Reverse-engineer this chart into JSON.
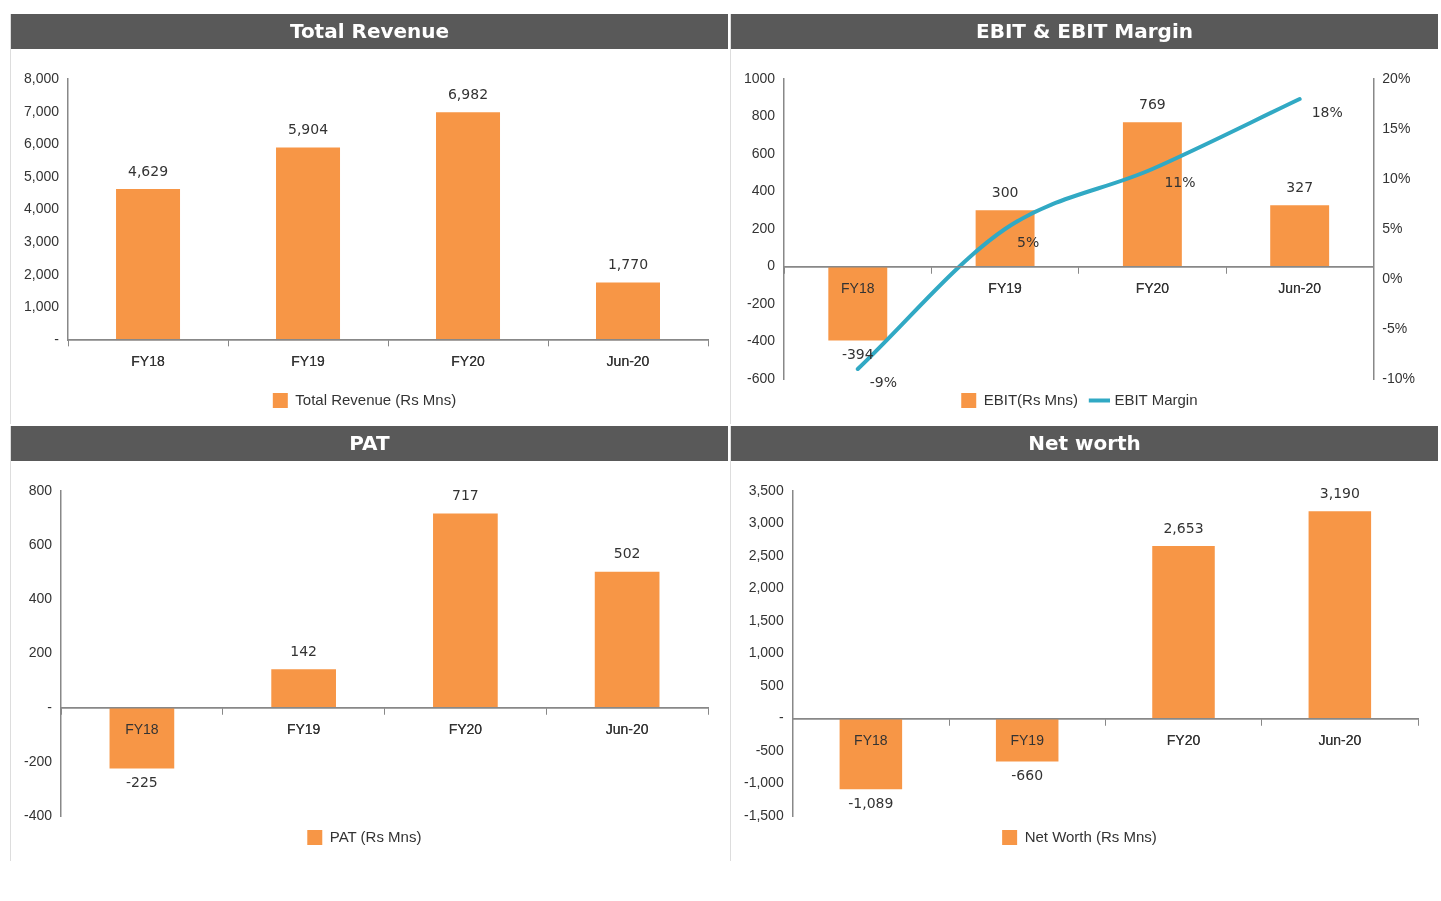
{
  "chart_data": [
    {
      "type": "bar",
      "title": "Total Revenue",
      "categories": [
        "FY18",
        "FY19",
        "FY20",
        "Jun-20"
      ],
      "series": [
        {
          "name": "Total Revenue (Rs Mns)",
          "color": "#f79646",
          "values": [
            4629,
            5904,
            6982,
            1770
          ],
          "value_labels": [
            "4,629",
            "5,904",
            "6,982",
            "1,770"
          ]
        }
      ],
      "ylim": [
        0,
        8000
      ],
      "yticks": [
        {
          "value": 0,
          "label": "-"
        },
        {
          "value": 1000,
          "label": "1,000"
        },
        {
          "value": 2000,
          "label": "2,000"
        },
        {
          "value": 3000,
          "label": "3,000"
        },
        {
          "value": 4000,
          "label": "4,000"
        },
        {
          "value": 5000,
          "label": "5,000"
        },
        {
          "value": 6000,
          "label": "6,000"
        },
        {
          "value": 7000,
          "label": "7,000"
        },
        {
          "value": 8000,
          "label": "8,000"
        }
      ],
      "grid": false,
      "legend": "bottom"
    },
    {
      "type": "bar",
      "title": "EBIT & EBIT Margin",
      "categories": [
        "FY18",
        "FY19",
        "FY20",
        "Jun-20"
      ],
      "series": [
        {
          "name": "EBIT(Rs Mns)",
          "color": "#f79646",
          "values": [
            -394,
            300,
            769,
            327
          ],
          "value_labels": [
            "-394",
            "300",
            "769",
            "327"
          ]
        },
        {
          "name": "EBIT Margin",
          "type": "line",
          "axis": "y2",
          "color": "#31a9c4",
          "values": [
            -9,
            5,
            11,
            18
          ],
          "value_labels": [
            "-9%",
            "5%",
            "11%",
            "18%"
          ]
        }
      ],
      "ylim": [
        -600,
        1000
      ],
      "yticks": [
        -600,
        -400,
        -200,
        0,
        200,
        400,
        600,
        800,
        1000
      ],
      "y2lim": [
        -10,
        20
      ],
      "y2ticks": [
        {
          "value": -10,
          "label": "-10%"
        },
        {
          "value": -5,
          "label": "-5%"
        },
        {
          "value": 0,
          "label": "0%"
        },
        {
          "value": 5,
          "label": "5%"
        },
        {
          "value": 10,
          "label": "10%"
        },
        {
          "value": 15,
          "label": "15%"
        },
        {
          "value": 20,
          "label": "20%"
        }
      ],
      "grid": false,
      "legend": "bottom",
      "marker": "none"
    },
    {
      "type": "bar",
      "title": "PAT",
      "categories": [
        "FY18",
        "FY19",
        "FY20",
        "Jun-20"
      ],
      "series": [
        {
          "name": "PAT (Rs Mns)",
          "color": "#f79646",
          "values": [
            -225,
            142,
            717,
            502
          ],
          "value_labels": [
            "-225",
            "142",
            "717",
            "502"
          ]
        }
      ],
      "ylim": [
        -400,
        800
      ],
      "yticks": [
        -400,
        -200,
        {
          "value": 0,
          "label": "-"
        },
        200,
        400,
        600,
        800
      ],
      "grid": false,
      "legend": "bottom"
    },
    {
      "type": "bar",
      "title": "Net worth",
      "categories": [
        "FY18",
        "FY19",
        "FY20",
        "Jun-20"
      ],
      "series": [
        {
          "name": "Net Worth (Rs Mns)",
          "color": "#f79646",
          "values": [
            -1089,
            -660,
            2653,
            3190
          ],
          "value_labels": [
            "-1,089",
            "-660",
            "2,653",
            "3,190"
          ]
        }
      ],
      "ylim": [
        -1500,
        3500
      ],
      "yticks": [
        {
          "value": -1500,
          "label": "-1,500"
        },
        {
          "value": -1000,
          "label": "-1,000"
        },
        {
          "value": -500,
          "label": "-500"
        },
        {
          "value": 0,
          "label": "-"
        },
        {
          "value": 500,
          "label": "500"
        },
        {
          "value": 1000,
          "label": "1,000"
        },
        {
          "value": 1500,
          "label": "1,500"
        },
        {
          "value": 2000,
          "label": "2,000"
        },
        {
          "value": 2500,
          "label": "2,500"
        },
        {
          "value": 3000,
          "label": "3,000"
        },
        {
          "value": 3500,
          "label": "3,500"
        }
      ],
      "grid": false,
      "legend": "bottom"
    }
  ]
}
